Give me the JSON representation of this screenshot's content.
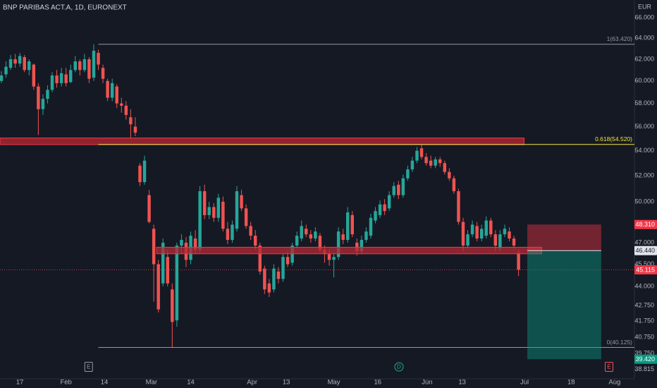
{
  "chart_data": {
    "type": "candlestick",
    "title": "BNP PARIBAS ACT.A, 1D, EURONEXT",
    "y_unit": "EUR",
    "log_scale": true,
    "up_color": "#26a69a",
    "down_color": "#ef5350",
    "ylim": [
      38.27,
      67.8
    ],
    "xlim": [
      -0.3,
      137.1
    ],
    "yticks": [
      {
        "value": 66,
        "label": "66.000"
      },
      {
        "value": 64,
        "label": "64.000"
      },
      {
        "value": 62,
        "label": "62.000"
      },
      {
        "value": 60,
        "label": "60.000"
      },
      {
        "value": 58,
        "label": "58.000"
      },
      {
        "value": 56,
        "label": "56.000"
      },
      {
        "value": 54,
        "label": "54.000"
      },
      {
        "value": 52,
        "label": "52.000"
      },
      {
        "value": 50,
        "label": "50.000"
      },
      {
        "value": 47,
        "label": "47.000"
      },
      {
        "value": 45.5,
        "label": "45.500"
      },
      {
        "value": 44,
        "label": "44.000"
      },
      {
        "value": 42.75,
        "label": "42.750"
      },
      {
        "value": 41.75,
        "label": "41.750"
      },
      {
        "value": 40.75,
        "label": "40.750"
      },
      {
        "value": 39.75,
        "label": "39.750"
      },
      {
        "value": 38.815,
        "label": "38.815"
      }
    ],
    "xticks": [
      {
        "value": 4,
        "label": "17"
      },
      {
        "value": 14,
        "label": "Feb"
      },
      {
        "value": 22.3,
        "label": "14"
      },
      {
        "value": 32.5,
        "label": "Mar"
      },
      {
        "value": 41,
        "label": "14"
      },
      {
        "value": 54.3,
        "label": "Apr"
      },
      {
        "value": 61.7,
        "label": "13"
      },
      {
        "value": 72,
        "label": "May"
      },
      {
        "value": 81.5,
        "label": "16"
      },
      {
        "value": 92.2,
        "label": "Jun"
      },
      {
        "value": 99.8,
        "label": "13"
      },
      {
        "value": 113.3,
        "label": "Jul"
      },
      {
        "value": 123.4,
        "label": "18"
      },
      {
        "value": 132.8,
        "label": "Aug"
      }
    ],
    "ohlc": [
      [
        60.0,
        60.9,
        59.8,
        60.5
      ],
      [
        60.6,
        61.8,
        60.3,
        61.3
      ],
      [
        61.2,
        62.4,
        61.0,
        62.0
      ],
      [
        62.0,
        62.5,
        61.2,
        61.6
      ],
      [
        61.6,
        62.6,
        61.3,
        62.3
      ],
      [
        62.2,
        62.4,
        60.8,
        61.0
      ],
      [
        61.0,
        62.0,
        60.5,
        61.8
      ],
      [
        61.5,
        61.6,
        59.2,
        59.5
      ],
      [
        59.5,
        59.8,
        55.3,
        57.5
      ],
      [
        57.5,
        58.8,
        57.0,
        58.4
      ],
      [
        58.4,
        59.6,
        58.0,
        59.2
      ],
      [
        59.2,
        60.8,
        59.0,
        60.5
      ],
      [
        60.5,
        61.0,
        59.4,
        59.8
      ],
      [
        59.8,
        61.2,
        59.5,
        60.7
      ],
      [
        60.6,
        61.2,
        59.5,
        59.8
      ],
      [
        59.9,
        61.5,
        59.8,
        61.0
      ],
      [
        61.0,
        62.3,
        60.8,
        61.8
      ],
      [
        61.8,
        62.0,
        60.5,
        61.0
      ],
      [
        61.0,
        62.5,
        60.8,
        62.0
      ],
      [
        62.0,
        62.2,
        59.8,
        60.2
      ],
      [
        60.3,
        63.42,
        60.0,
        62.8
      ],
      [
        62.6,
        62.9,
        61.0,
        61.5
      ],
      [
        61.2,
        61.5,
        59.8,
        60.2
      ],
      [
        60.0,
        60.2,
        58.2,
        58.5
      ],
      [
        58.5,
        60.2,
        58.2,
        59.8
      ],
      [
        59.5,
        59.7,
        57.6,
        58.0
      ],
      [
        58.0,
        58.5,
        57.2,
        57.8
      ],
      [
        57.8,
        58.2,
        56.6,
        57.0
      ],
      [
        56.8,
        57.5,
        55.0,
        56.2
      ],
      [
        56.0,
        56.8,
        55.2,
        55.5
      ],
      [
        52.8,
        53.0,
        51.2,
        51.5
      ],
      [
        51.5,
        53.6,
        51.3,
        53.2
      ],
      [
        50.5,
        50.9,
        48.4,
        48.5
      ],
      [
        48.0,
        48.3,
        43.0,
        45.5
      ],
      [
        45.5,
        45.8,
        42.3,
        42.5
      ],
      [
        44.2,
        47.3,
        44.0,
        47.0
      ],
      [
        46.0,
        46.5,
        44.0,
        44.2
      ],
      [
        43.8,
        44.2,
        40.1,
        41.7
      ],
      [
        41.8,
        47.0,
        41.4,
        46.8
      ],
      [
        46.8,
        47.6,
        46.2,
        47.2
      ],
      [
        47.0,
        47.4,
        45.3,
        45.8
      ],
      [
        45.8,
        47.8,
        45.5,
        47.5
      ],
      [
        47.3,
        47.9,
        46.2,
        46.5
      ],
      [
        46.5,
        51.2,
        46.3,
        50.8
      ],
      [
        50.8,
        51.3,
        48.7,
        49.0
      ],
      [
        49.0,
        50.0,
        48.7,
        49.6
      ],
      [
        49.6,
        49.9,
        48.5,
        48.8
      ],
      [
        48.8,
        50.6,
        48.5,
        50.3
      ],
      [
        50.0,
        50.4,
        47.8,
        48.0
      ],
      [
        48.0,
        48.5,
        46.9,
        47.2
      ],
      [
        47.2,
        48.6,
        47.0,
        48.3
      ],
      [
        48.0,
        51.2,
        47.8,
        50.8
      ],
      [
        50.5,
        50.9,
        49.3,
        49.5
      ],
      [
        49.5,
        49.8,
        48.0,
        48.2
      ],
      [
        48.2,
        48.5,
        47.2,
        47.5
      ],
      [
        47.5,
        47.9,
        46.5,
        46.8
      ],
      [
        46.8,
        47.0,
        44.8,
        45.0
      ],
      [
        45.2,
        45.4,
        43.5,
        43.8
      ],
      [
        44.2,
        44.5,
        43.3,
        43.6
      ],
      [
        43.8,
        45.5,
        43.6,
        45.2
      ],
      [
        45.0,
        45.3,
        44.2,
        44.5
      ],
      [
        44.5,
        46.2,
        44.3,
        46.0
      ],
      [
        46.0,
        46.4,
        45.3,
        45.5
      ],
      [
        45.6,
        47.0,
        45.4,
        46.8
      ],
      [
        46.8,
        47.8,
        46.6,
        47.5
      ],
      [
        47.3,
        48.6,
        47.1,
        48.2
      ],
      [
        48.0,
        48.3,
        47.4,
        47.6
      ],
      [
        47.6,
        47.9,
        47.0,
        47.3
      ],
      [
        47.3,
        48.1,
        47.1,
        47.8
      ],
      [
        47.5,
        47.7,
        46.3,
        46.5
      ],
      [
        46.5,
        46.8,
        45.6,
        46.2
      ],
      [
        46.2,
        46.5,
        45.4,
        45.8
      ],
      [
        45.8,
        46.3,
        44.6,
        46.0
      ],
      [
        46.0,
        48.1,
        45.8,
        47.8
      ],
      [
        47.6,
        48.0,
        46.9,
        47.2
      ],
      [
        47.2,
        49.6,
        47.0,
        49.2
      ],
      [
        49.0,
        49.3,
        47.4,
        47.6
      ],
      [
        47.0,
        47.3,
        46.1,
        46.4
      ],
      [
        46.4,
        47.5,
        46.2,
        47.2
      ],
      [
        47.2,
        48.1,
        47.0,
        47.8
      ],
      [
        47.5,
        49.1,
        47.3,
        48.8
      ],
      [
        48.6,
        49.6,
        48.4,
        49.3
      ],
      [
        49.0,
        50.1,
        48.8,
        49.8
      ],
      [
        49.8,
        50.2,
        49.0,
        49.3
      ],
      [
        49.5,
        50.8,
        49.3,
        50.5
      ],
      [
        50.5,
        51.5,
        50.3,
        51.2
      ],
      [
        51.3,
        51.6,
        50.2,
        50.5
      ],
      [
        50.5,
        52.1,
        50.3,
        51.8
      ],
      [
        51.8,
        52.8,
        51.6,
        52.5
      ],
      [
        52.5,
        53.5,
        52.3,
        53.2
      ],
      [
        53.2,
        54.3,
        53.0,
        54.0
      ],
      [
        54.2,
        54.5,
        53.3,
        53.5
      ],
      [
        53.5,
        53.8,
        52.8,
        53.0
      ],
      [
        53.2,
        53.6,
        52.6,
        52.8
      ],
      [
        52.8,
        53.5,
        52.6,
        53.3
      ],
      [
        53.3,
        53.5,
        52.7,
        53.0
      ],
      [
        53.0,
        53.2,
        52.1,
        52.3
      ],
      [
        52.3,
        52.6,
        51.6,
        51.8
      ],
      [
        51.8,
        52.0,
        50.6,
        50.8
      ],
      [
        50.8,
        51.0,
        48.3,
        48.5
      ],
      [
        48.5,
        48.8,
        46.4,
        46.8
      ],
      [
        46.8,
        47.9,
        46.6,
        47.6
      ],
      [
        47.6,
        48.6,
        47.4,
        48.3
      ],
      [
        48.2,
        48.5,
        47.1,
        47.3
      ],
      [
        47.3,
        48.3,
        47.1,
        48.0
      ],
      [
        47.5,
        48.9,
        47.3,
        48.6
      ],
      [
        48.6,
        48.8,
        47.4,
        47.6
      ],
      [
        47.6,
        47.9,
        46.4,
        46.8
      ],
      [
        46.6,
        47.9,
        46.4,
        47.6
      ],
      [
        47.6,
        48.3,
        47.4,
        48.0
      ],
      [
        47.8,
        48.1,
        47.1,
        47.3
      ],
      [
        47.3,
        47.5,
        46.6,
        46.8
      ],
      [
        46.3,
        46.5,
        44.7,
        45.115
      ]
    ],
    "zones": [
      {
        "low": 54.5,
        "high": 55.05,
        "from": -0.3,
        "to": 113.2,
        "color": "#b22833"
      },
      {
        "low": 46.22,
        "high": 46.68,
        "from": 33.6,
        "to": 117,
        "color": "#b22833"
      }
    ],
    "levels": [
      {
        "value": 63.42,
        "label": "1(63.420)",
        "from": 21,
        "color": "#9598a1"
      },
      {
        "value": 54.52,
        "label": "0.618(54.520)",
        "from": 21,
        "color": "#f5e642"
      },
      {
        "value": 40.125,
        "label": "0(40.125)",
        "from": 21,
        "color": "#9598a1"
      }
    ],
    "position": {
      "from": 113.9,
      "to": 129.9,
      "stop": {
        "value": 48.31,
        "label": "48.310",
        "color": "#f23645"
      },
      "entry": {
        "value": 46.44,
        "label": "46.440",
        "color": "#e0e3eb"
      },
      "target": {
        "value": 39.42,
        "label": "39.420",
        "color": "#089981"
      }
    },
    "last_price": {
      "value": 45.115,
      "label": "45.115",
      "color": "#f23645"
    },
    "events": [
      {
        "label": "E",
        "x": 18.9,
        "shape": "box",
        "color": "#9598a1"
      },
      {
        "label": "D",
        "x": 86.1,
        "shape": "circle",
        "color": "#26a69a"
      },
      {
        "label": "E",
        "x": 131.6,
        "shape": "box",
        "color": "#f7525f"
      }
    ]
  }
}
